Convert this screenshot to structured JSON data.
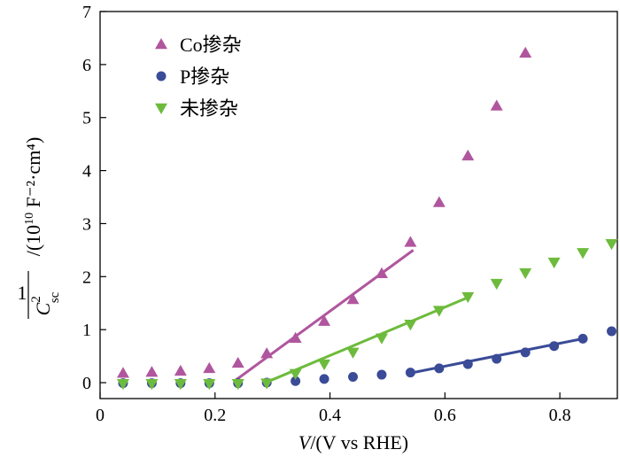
{
  "chart_data": {
    "type": "scatter",
    "xlabel": {
      "var": "V",
      "rest": "/(V vs RHE)"
    },
    "ylabel": {
      "numerator": "1",
      "var": "C",
      "superscript": "2",
      "subscript": "sc",
      "units": "/(10",
      "units_exp": "10",
      "units_rest": " F⁻²·cm⁴)"
    },
    "xlim": [
      0,
      0.9
    ],
    "ylim": [
      -0.3,
      7
    ],
    "xticks": [
      0,
      0.2,
      0.4,
      0.6,
      0.8
    ],
    "xtick_labels": [
      "0",
      "0.2",
      "0.4",
      "0.6",
      "0.8"
    ],
    "yticks": [
      0,
      1,
      2,
      3,
      4,
      5,
      6,
      7
    ],
    "ytick_labels": [
      "0",
      "1",
      "2",
      "3",
      "4",
      "5",
      "6",
      "7"
    ],
    "legend_position": "top-left",
    "series": [
      {
        "name": "Co掺杂",
        "marker": "triangle-up",
        "color": "#b0569e",
        "x": [
          0.04,
          0.09,
          0.14,
          0.19,
          0.24,
          0.29,
          0.34,
          0.39,
          0.44,
          0.49,
          0.54,
          0.59,
          0.64,
          0.69,
          0.74
        ],
        "y": [
          0.18,
          0.2,
          0.22,
          0.27,
          0.37,
          0.55,
          0.84,
          1.16,
          1.57,
          2.06,
          2.65,
          3.4,
          4.28,
          5.22,
          6.22
        ],
        "fit": [
          [
            0.235,
            0.04
          ],
          [
            0.545,
            2.5
          ]
        ]
      },
      {
        "name": "P掺杂",
        "marker": "circle",
        "color": "#3a4b97",
        "x": [
          0.04,
          0.09,
          0.14,
          0.19,
          0.24,
          0.29,
          0.34,
          0.39,
          0.44,
          0.49,
          0.54,
          0.59,
          0.64,
          0.69,
          0.74,
          0.79,
          0.84,
          0.89
        ],
        "y": [
          -0.01,
          -0.01,
          -0.01,
          -0.01,
          -0.01,
          0.0,
          0.03,
          0.07,
          0.11,
          0.15,
          0.19,
          0.27,
          0.35,
          0.45,
          0.57,
          0.69,
          0.83,
          0.97
        ],
        "fit": [
          [
            0.535,
            0.17
          ],
          [
            0.845,
            0.84
          ]
        ]
      },
      {
        "name": "未掺杂",
        "marker": "triangle-down",
        "color": "#6dbb3c",
        "x": [
          0.04,
          0.09,
          0.14,
          0.19,
          0.24,
          0.29,
          0.34,
          0.39,
          0.44,
          0.49,
          0.54,
          0.59,
          0.64,
          0.69,
          0.74,
          0.79,
          0.84,
          0.89
        ],
        "y": [
          -0.02,
          -0.02,
          -0.02,
          -0.02,
          -0.02,
          -0.01,
          0.17,
          0.35,
          0.57,
          0.84,
          1.1,
          1.36,
          1.62,
          1.87,
          2.07,
          2.27,
          2.45,
          2.62
        ],
        "fit": [
          [
            0.29,
            0.01
          ],
          [
            0.645,
            1.63
          ]
        ]
      }
    ]
  }
}
